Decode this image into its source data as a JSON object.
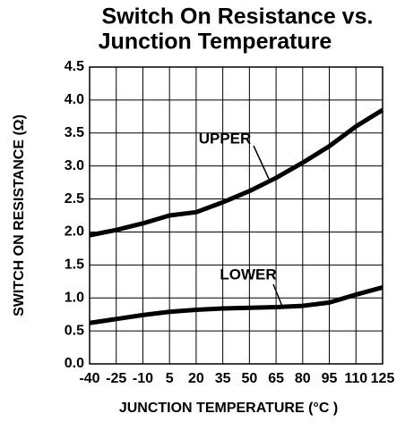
{
  "chart_data": {
    "type": "line",
    "title": [
      "Switch On Resistance vs.",
      "Junction Temperature"
    ],
    "x_label": "JUNCTION TEMPERATURE (°C )",
    "y_label": "SWITCH ON RESISTANCE (Ω)",
    "x": [
      -40,
      -25,
      -10,
      5,
      20,
      35,
      50,
      65,
      80,
      95,
      110,
      125
    ],
    "series": [
      {
        "name": "UPPER",
        "color": "#000000",
        "values": [
          1.95,
          2.03,
          2.13,
          2.25,
          2.3,
          2.45,
          2.62,
          2.82,
          3.05,
          3.3,
          3.6,
          3.85
        ]
      },
      {
        "name": "LOWER",
        "color": "#000000",
        "values": [
          0.62,
          0.68,
          0.74,
          0.79,
          0.82,
          0.84,
          0.85,
          0.86,
          0.88,
          0.93,
          1.05,
          1.16
        ]
      }
    ],
    "xlim": [
      -40,
      125
    ],
    "xticks": [
      -40,
      -25,
      -10,
      5,
      20,
      35,
      50,
      65,
      80,
      95,
      110,
      125
    ],
    "ylim": [
      0,
      4.5
    ],
    "yticks": [
      {
        "value": 0,
        "label": "0.0"
      },
      0.5,
      {
        "value": 1,
        "label": "1.0"
      },
      1.5,
      {
        "value": 2,
        "label": "2.0"
      },
      2.5,
      {
        "value": 3,
        "label": "3.0"
      },
      3.5,
      {
        "value": 4,
        "label": "4.0"
      },
      4.5
    ],
    "grid": true
  }
}
